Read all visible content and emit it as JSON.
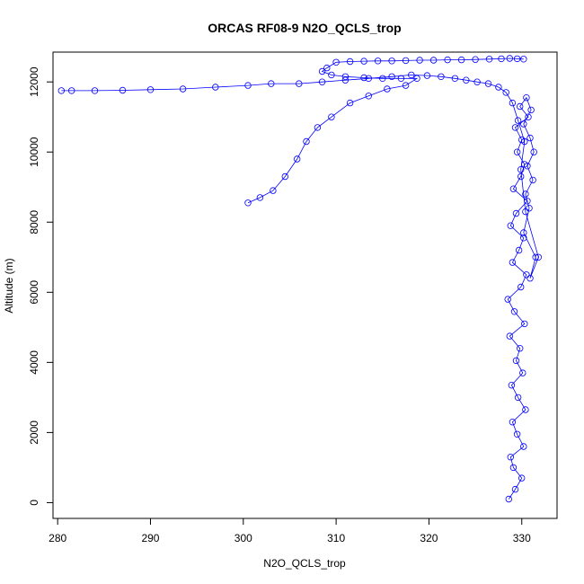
{
  "chart_data": {
    "type": "scatter",
    "title": "ORCAS RF08-9 N2O_QCLS_trop",
    "xlabel": "N2O_QCLS_trop",
    "ylabel": "Altitude (m)",
    "xlim": [
      279.5,
      333.8
    ],
    "ylim": [
      -450,
      12850
    ],
    "x_ticks": [
      280,
      290,
      300,
      310,
      320,
      330
    ],
    "y_ticks": [
      0,
      2000,
      4000,
      6000,
      8000,
      10000,
      12000
    ],
    "grid": false,
    "legend": "none",
    "color": "#0000ff",
    "series": [
      {
        "x": [
          328.6,
          329.3,
          330.0,
          329.1,
          328.8,
          330.2,
          329.5,
          329.0,
          330.4,
          329.6,
          328.9,
          330.1,
          329.4,
          329.8,
          328.7,
          330.3,
          329.2,
          328.5,
          329.9,
          330.5,
          329.0,
          329.7,
          330.2,
          328.8,
          329.4,
          330.6,
          329.1,
          329.9,
          330.3,
          329.5,
          330.0,
          329.3,
          330.7,
          329.8,
          330.5,
          331.0,
          330.2,
          330.9,
          331.3,
          330.6,
          331.2,
          330.4,
          330.8,
          330.2,
          331.5,
          330.9,
          331.8,
          330.4,
          329.9,
          330.3,
          329.6,
          329.0,
          328.3,
          327.5,
          326.4,
          325.2,
          324.0,
          322.8,
          321.3,
          319.8,
          318.1,
          316.0,
          313.5,
          311.0,
          308.5,
          306.0,
          303.0,
          300.5,
          297.0,
          293.5,
          290.0,
          287.0,
          284.0,
          281.5,
          280.4
        ],
        "y": [
          100,
          380,
          700,
          1000,
          1300,
          1600,
          1950,
          2300,
          2650,
          3000,
          3350,
          3700,
          4050,
          4400,
          4750,
          5100,
          5450,
          5800,
          6150,
          6500,
          6850,
          7200,
          7550,
          7900,
          8250,
          8600,
          8950,
          9300,
          9650,
          10000,
          10350,
          10700,
          11000,
          11300,
          11550,
          11200,
          10800,
          10400,
          10000,
          9600,
          9200,
          8800,
          8400,
          7700,
          7000,
          6400,
          7000,
          8300,
          9500,
          10300,
          10900,
          11400,
          11700,
          11850,
          11950,
          12000,
          12050,
          12100,
          12150,
          12180,
          12200,
          12150,
          12100,
          12050,
          12000,
          11950,
          11950,
          11900,
          11850,
          11800,
          11780,
          11760,
          11750,
          11750,
          11750
        ]
      },
      {
        "x": [
          330.2,
          329.5,
          328.7,
          327.8,
          326.5,
          325.0,
          323.5,
          322.0,
          320.5,
          319.0,
          317.5,
          316.0,
          314.5,
          313.0,
          311.5,
          310.0,
          309.0,
          308.5,
          309.5,
          311.0,
          313.0,
          315.0,
          317.0,
          318.7,
          317.5,
          315.5,
          313.5,
          311.5,
          309.5,
          308.0,
          306.8,
          305.8,
          304.5,
          303.2,
          301.8,
          300.5
        ],
        "y": [
          12650,
          12660,
          12670,
          12660,
          12650,
          12640,
          12630,
          12630,
          12620,
          12620,
          12610,
          12600,
          12600,
          12590,
          12580,
          12560,
          12400,
          12300,
          12200,
          12150,
          12120,
          12100,
          12100,
          12100,
          11900,
          11800,
          11600,
          11400,
          11000,
          10700,
          10300,
          9800,
          9300,
          8900,
          8700,
          8550
        ]
      }
    ]
  }
}
